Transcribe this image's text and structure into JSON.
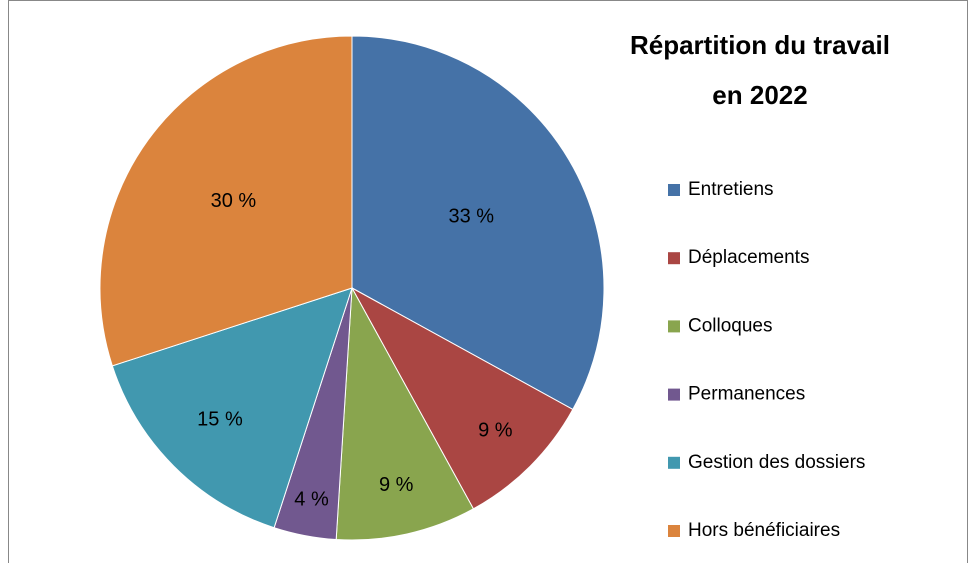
{
  "chart_data": {
    "type": "pie",
    "title": "Répartition du travail en 2022",
    "categories": [
      "Entretiens",
      "Déplacements",
      "Colloques",
      "Permanences",
      "Gestion des dossiers",
      "Hors bénéficiaires"
    ],
    "values": [
      33,
      9,
      9,
      4,
      15,
      30
    ],
    "value_labels": [
      "33 %",
      "9 %",
      "9 %",
      "4 %",
      "15 %",
      "30 %"
    ],
    "colors": [
      "#4572A7",
      "#AA4643",
      "#89A54E",
      "#71588F",
      "#4198AF",
      "#DB843D"
    ],
    "legend": "right"
  }
}
